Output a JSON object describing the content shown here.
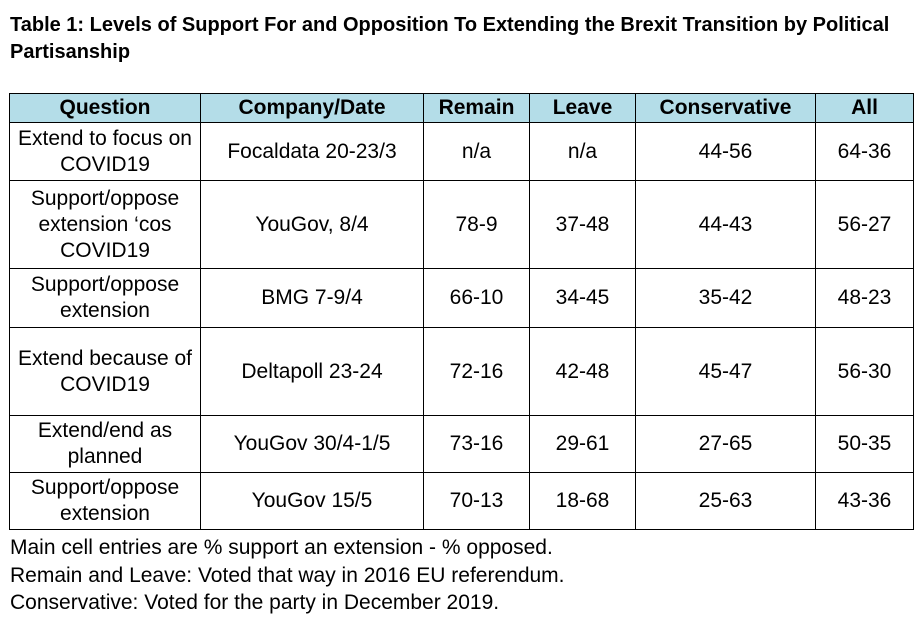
{
  "title": "Table 1: Levels of Support For and Opposition To Extending the Brexit Transition by Political Partisanship",
  "table": {
    "headers": [
      "Question",
      "Company/Date",
      "Remain",
      "Leave",
      "Conservative",
      "All"
    ],
    "rows": [
      [
        "Extend to focus on COVID19",
        "Focaldata 20-23/3",
        "n/a",
        "n/a",
        "44-56",
        "64-36"
      ],
      [
        "Support/oppose extension ‘cos COVID19",
        "YouGov, 8/4",
        "78-9",
        "37-48",
        "44-43",
        "56-27"
      ],
      [
        "Support/oppose extension",
        "BMG 7-9/4",
        "66-10",
        "34-45",
        "35-42",
        "48-23"
      ],
      [
        "Extend because of COVID19",
        "Deltapoll 23-24",
        "72-16",
        "42-48",
        "45-47",
        "56-30"
      ],
      [
        "Extend/end as planned",
        "YouGov 30/4-1/5",
        "73-16",
        "29-61",
        "27-65",
        "50-35"
      ],
      [
        "Support/oppose extension",
        "YouGov 15/5",
        "70-13",
        "18-68",
        "25-63",
        "43-36"
      ]
    ]
  },
  "notes": [
    "Main cell entries are % support an extension - % opposed.",
    "Remain and Leave: Voted that way in 2016 EU referendum.",
    "Conservative: Voted for the party in December 2019."
  ],
  "colors": {
    "header_bg": "#b4dde8",
    "border": "#000000"
  }
}
